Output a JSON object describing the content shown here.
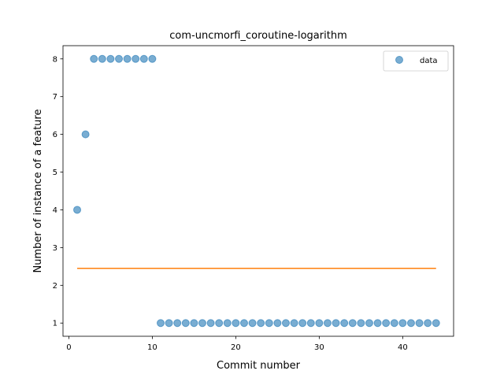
{
  "chart_data": {
    "type": "scatter",
    "title": "com-uncmorfi_coroutine-logarithm",
    "xlabel": "Commit number",
    "ylabel": "Number of instance of a feature",
    "xlim": [
      -0.7,
      46.1
    ],
    "ylim": [
      0.65,
      8.35
    ],
    "xticks": [
      0,
      10,
      20,
      30,
      40
    ],
    "yticks": [
      1,
      2,
      3,
      4,
      5,
      6,
      7,
      8
    ],
    "grid": false,
    "legend": {
      "position": "top-right",
      "entries": [
        "data"
      ]
    },
    "series": [
      {
        "name": "data",
        "kind": "scatter",
        "color": "#1f77b4",
        "x": [
          1,
          2,
          3,
          4,
          5,
          6,
          7,
          8,
          9,
          10,
          11,
          12,
          13,
          14,
          15,
          16,
          17,
          18,
          19,
          20,
          21,
          22,
          23,
          24,
          25,
          26,
          27,
          28,
          29,
          30,
          31,
          32,
          33,
          34,
          35,
          36,
          37,
          38,
          39,
          40,
          41,
          42,
          43,
          44
        ],
        "y": [
          4,
          6,
          8,
          8,
          8,
          8,
          8,
          8,
          8,
          8,
          1,
          1,
          1,
          1,
          1,
          1,
          1,
          1,
          1,
          1,
          1,
          1,
          1,
          1,
          1,
          1,
          1,
          1,
          1,
          1,
          1,
          1,
          1,
          1,
          1,
          1,
          1,
          1,
          1,
          1,
          1,
          1,
          1,
          1
        ]
      },
      {
        "kind": "line",
        "color": "#ff7f0e",
        "x": [
          1,
          44
        ],
        "y": [
          2.45,
          2.45
        ]
      }
    ]
  }
}
